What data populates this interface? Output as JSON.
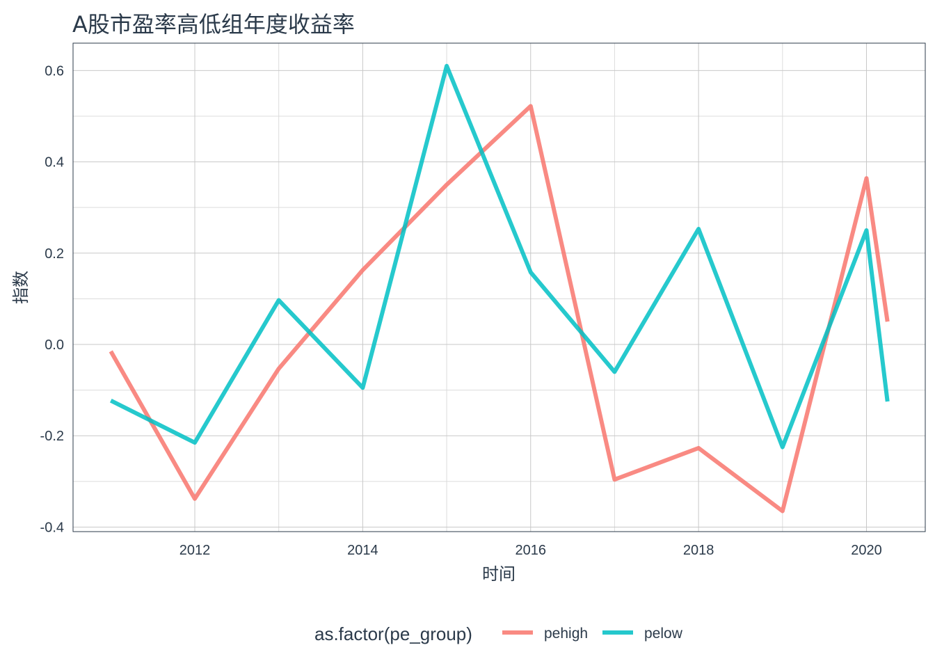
{
  "chart_data": {
    "type": "line",
    "title": "A股市盈率高低组年度收益率",
    "xlabel": "时间",
    "ylabel": "指数",
    "x_ticks": [
      "2012",
      "2014",
      "2016",
      "2018",
      "2020"
    ],
    "y_ticks": [
      "-0.4",
      "-0.2",
      "0.0",
      "0.2",
      "0.4",
      "0.6"
    ],
    "xlim": [
      2010.55,
      2020.7
    ],
    "ylim": [
      -0.41,
      0.66
    ],
    "grid": true,
    "legend": {
      "title": "as.factor(pe_group)",
      "placement": "bottom"
    },
    "series": [
      {
        "name": "pehigh",
        "color": "#f8766d",
        "x": [
          2011,
          2012,
          2013,
          2014,
          2015,
          2016,
          2017,
          2018,
          2019,
          2020,
          2020.25
        ],
        "values": [
          -0.015,
          -0.338,
          -0.053,
          0.163,
          0.35,
          0.522,
          -0.296,
          -0.227,
          -0.365,
          0.364,
          0.05
        ]
      },
      {
        "name": "pelow",
        "color": "#00bfc4",
        "x": [
          2011,
          2012,
          2013,
          2014,
          2015,
          2016,
          2017,
          2018,
          2019,
          2020,
          2020.25
        ],
        "values": [
          -0.123,
          -0.215,
          0.097,
          -0.095,
          0.61,
          0.158,
          -0.06,
          0.253,
          -0.225,
          0.25,
          -0.125
        ]
      }
    ]
  }
}
